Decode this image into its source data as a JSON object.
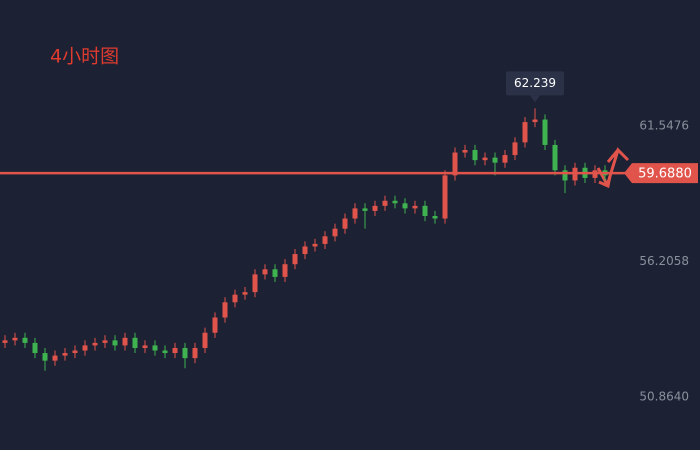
{
  "chart_data": {
    "type": "candlestick",
    "title": "4小时图",
    "ylim": [
      48.78,
      66.51
    ],
    "yticks": [
      61.5476,
      56.2058,
      {
        "value": 50.864,
        "label": "50.8640"
      }
    ],
    "up_color": "#e0544b",
    "down_color": "#3fb34f",
    "price_line": {
      "value": 59.688,
      "label": "59.6880",
      "color": "#e0544b"
    },
    "max_marker_index": 53,
    "series": [
      {
        "open": [
          53.0,
          53.1,
          53.2,
          53.0,
          52.6,
          52.3,
          52.5,
          52.6,
          52.7,
          52.9,
          53.0,
          53.1,
          52.9,
          53.2,
          52.8,
          52.9,
          52.7,
          52.6,
          52.8,
          52.4,
          52.8,
          53.4,
          54.0,
          54.6,
          54.9,
          55.0,
          55.7,
          55.9,
          55.6,
          56.1,
          56.5,
          56.8,
          56.9,
          57.2,
          57.5,
          57.9,
          58.3,
          58.2,
          58.4,
          58.6,
          58.5,
          58.3,
          58.4,
          58.0,
          57.9,
          59.6,
          60.5,
          60.6,
          60.2,
          60.3,
          60.1,
          60.4,
          60.9,
          61.7,
          61.8,
          60.8,
          59.8,
          59.4,
          59.9,
          59.5,
          59.8
        ],
        "high": [
          53.3,
          53.4,
          53.4,
          53.2,
          52.8,
          52.7,
          52.8,
          52.9,
          53.1,
          53.2,
          53.3,
          53.3,
          53.4,
          53.4,
          53.1,
          53.1,
          52.9,
          53.0,
          53.0,
          53.0,
          53.6,
          54.2,
          54.8,
          55.1,
          55.2,
          55.9,
          56.1,
          56.1,
          56.3,
          56.7,
          57.0,
          57.1,
          57.4,
          57.7,
          58.1,
          58.5,
          58.5,
          58.6,
          58.8,
          58.8,
          58.7,
          58.6,
          58.6,
          58.2,
          59.8,
          60.7,
          60.8,
          60.8,
          60.5,
          60.5,
          60.6,
          61.1,
          61.9,
          62.239,
          62.0,
          61.0,
          60.0,
          60.1,
          60.1,
          60.0,
          60.0
        ],
        "low": [
          52.8,
          52.9,
          52.8,
          52.4,
          51.9,
          52.1,
          52.3,
          52.4,
          52.5,
          52.7,
          52.8,
          52.7,
          52.7,
          52.6,
          52.6,
          52.5,
          52.4,
          52.4,
          52.0,
          52.2,
          52.6,
          53.2,
          53.8,
          54.4,
          54.7,
          54.8,
          55.5,
          55.4,
          55.4,
          55.9,
          56.3,
          56.6,
          56.7,
          57.0,
          57.3,
          57.7,
          57.5,
          58.0,
          58.2,
          58.3,
          58.1,
          58.1,
          57.8,
          57.7,
          57.7,
          59.4,
          60.3,
          60.0,
          60.0,
          59.6,
          59.9,
          60.2,
          60.7,
          61.5,
          60.6,
          59.6,
          58.9,
          59.2,
          59.3,
          59.3,
          59.4
        ],
        "close": [
          53.1,
          53.2,
          53.0,
          52.6,
          52.3,
          52.5,
          52.6,
          52.7,
          52.9,
          53.0,
          53.1,
          52.9,
          53.2,
          52.8,
          52.9,
          52.7,
          52.6,
          52.8,
          52.4,
          52.8,
          53.4,
          54.0,
          54.6,
          54.9,
          55.0,
          55.7,
          55.9,
          55.6,
          56.1,
          56.5,
          56.8,
          56.9,
          57.2,
          57.5,
          57.9,
          58.3,
          58.2,
          58.4,
          58.6,
          58.5,
          58.3,
          58.4,
          58.0,
          57.9,
          59.6,
          60.5,
          60.6,
          60.2,
          60.3,
          60.1,
          60.4,
          60.9,
          61.7,
          61.8,
          60.8,
          59.8,
          59.4,
          59.9,
          59.5,
          59.8,
          59.6
        ]
      }
    ]
  }
}
